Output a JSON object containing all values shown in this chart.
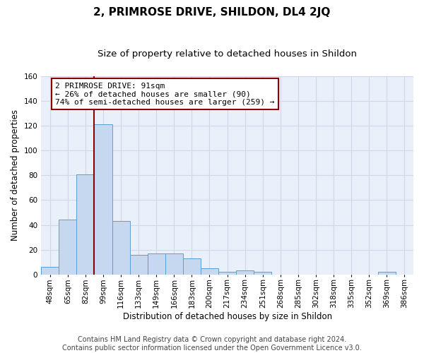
{
  "title1": "2, PRIMROSE DRIVE, SHILDON, DL4 2JQ",
  "title2": "Size of property relative to detached houses in Shildon",
  "xlabel": "Distribution of detached houses by size in Shildon",
  "ylabel": "Number of detached properties",
  "bin_labels": [
    "48sqm",
    "65sqm",
    "82sqm",
    "99sqm",
    "116sqm",
    "133sqm",
    "149sqm",
    "166sqm",
    "183sqm",
    "200sqm",
    "217sqm",
    "234sqm",
    "251sqm",
    "268sqm",
    "285sqm",
    "302sqm",
    "318sqm",
    "335sqm",
    "352sqm",
    "369sqm",
    "386sqm"
  ],
  "bar_values": [
    6,
    44,
    81,
    121,
    43,
    16,
    17,
    17,
    13,
    5,
    2,
    3,
    2,
    0,
    0,
    0,
    0,
    0,
    0,
    2,
    0
  ],
  "bar_color": "#c5d8f0",
  "bar_edge_color": "#5a9fd4",
  "grid_color": "#d0d8e8",
  "background_color": "#eaf0fa",
  "vline_color": "#8b0000",
  "vline_pos": 2.5,
  "annotation_text": "2 PRIMROSE DRIVE: 91sqm\n← 26% of detached houses are smaller (90)\n74% of semi-detached houses are larger (259) →",
  "annotation_box_color": "white",
  "annotation_box_edge": "#8b0000",
  "ylim": [
    0,
    160
  ],
  "yticks": [
    0,
    20,
    40,
    60,
    80,
    100,
    120,
    140,
    160
  ],
  "footnote": "Contains HM Land Registry data © Crown copyright and database right 2024.\nContains public sector information licensed under the Open Government Licence v3.0.",
  "title1_fontsize": 11,
  "title2_fontsize": 9.5,
  "xlabel_fontsize": 8.5,
  "ylabel_fontsize": 8.5,
  "annotation_fontsize": 8,
  "footnote_fontsize": 7,
  "tick_fontsize": 7.5
}
